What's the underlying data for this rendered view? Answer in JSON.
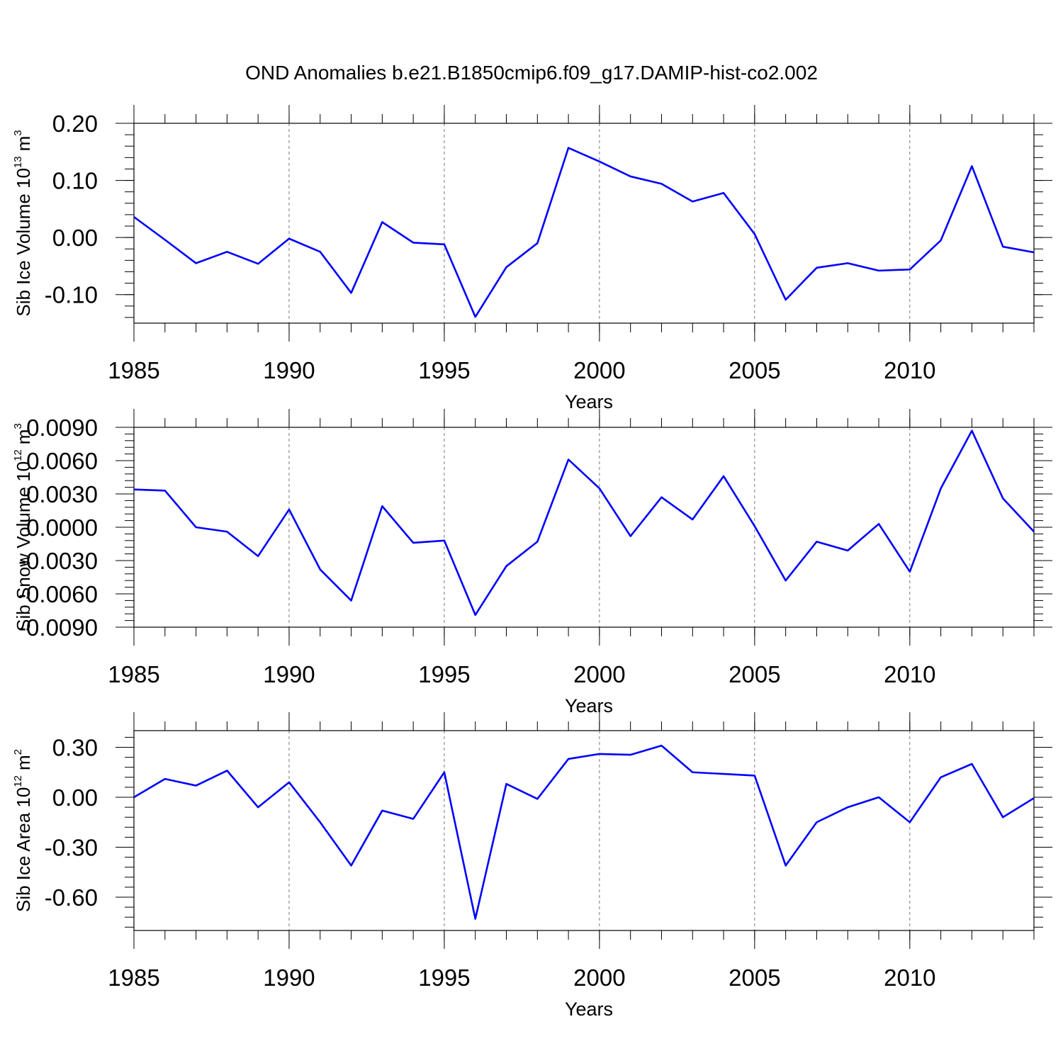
{
  "title": "OND Anomalies b.e21.B1850cmip6.f09_g17.DAMIP-hist-co2.002",
  "chart_data": [
    {
      "type": "line",
      "ylabel": [
        "Sib Ice Volume 10",
        "13",
        "m",
        "3"
      ],
      "xlabel": "Years",
      "x": [
        1985,
        1986,
        1987,
        1988,
        1989,
        1990,
        1991,
        1992,
        1993,
        1994,
        1995,
        1996,
        1997,
        1998,
        1999,
        2000,
        2001,
        2002,
        2003,
        2004,
        2005,
        2006,
        2007,
        2008,
        2009,
        2010,
        2011,
        2012,
        2013,
        2014
      ],
      "values": [
        0.036,
        -0.004,
        -0.045,
        -0.025,
        -0.046,
        -0.002,
        -0.025,
        -0.097,
        0.027,
        -0.009,
        -0.012,
        -0.139,
        -0.052,
        -0.01,
        0.157,
        0.133,
        0.107,
        0.094,
        0.063,
        0.078,
        0.006,
        -0.109,
        -0.053,
        -0.045,
        -0.058,
        -0.056,
        -0.005,
        0.125,
        -0.016,
        -0.026
      ],
      "color": "#0000ff",
      "xlim": [
        1985,
        2014
      ],
      "ylim": [
        -0.15,
        0.2
      ],
      "xticks": [
        1985,
        1990,
        1995,
        2000,
        2005,
        2010
      ],
      "yticks": [
        {
          "value": -0.1,
          "label": "-0.10"
        },
        {
          "value": 0,
          "label": "0.00"
        },
        {
          "value": 0.1,
          "label": "0.10"
        },
        {
          "value": 0.2,
          "label": "0.20"
        }
      ],
      "grid": "x"
    },
    {
      "type": "line",
      "ylabel": [
        "Sib Snow Volume 10",
        "12",
        "m",
        "3"
      ],
      "xlabel": "Years",
      "x": [
        1985,
        1986,
        1987,
        1988,
        1989,
        1990,
        1991,
        1992,
        1993,
        1994,
        1995,
        1996,
        1997,
        1998,
        1999,
        2000,
        2001,
        2002,
        2003,
        2004,
        2005,
        2006,
        2007,
        2008,
        2009,
        2010,
        2011,
        2012,
        2013,
        2014
      ],
      "values": [
        0.0034,
        0.0033,
        0.0,
        -0.0004,
        -0.0026,
        0.0016,
        -0.0038,
        -0.0066,
        0.0019,
        -0.0014,
        -0.0012,
        -0.0079,
        -0.0035,
        -0.0013,
        0.0061,
        0.0035,
        -0.0008,
        0.0027,
        0.0007,
        0.0046,
        0.0001,
        -0.0048,
        -0.0013,
        -0.0021,
        0.0003,
        -0.004,
        0.0035,
        0.0087,
        0.0026,
        -0.0004
      ],
      "color": "#0000ff",
      "xlim": [
        1985,
        2014
      ],
      "ylim": [
        -0.009,
        0.009
      ],
      "xticks": [
        1985,
        1990,
        1995,
        2000,
        2005,
        2010
      ],
      "yticks": [
        {
          "value": -0.009,
          "label": "-0.0090"
        },
        {
          "value": -0.006,
          "label": "-0.0060"
        },
        {
          "value": -0.003,
          "label": "-0.0030"
        },
        {
          "value": 0,
          "label": "0.0000"
        },
        {
          "value": 0.003,
          "label": "0.0030"
        },
        {
          "value": 0.006,
          "label": "0.0060"
        },
        {
          "value": 0.009,
          "label": "0.0090"
        }
      ],
      "grid": "x"
    },
    {
      "type": "line",
      "ylabel": [
        "Sib Ice Area 10",
        "12",
        "m",
        "2"
      ],
      "xlabel": "Years",
      "x": [
        1985,
        1986,
        1987,
        1988,
        1989,
        1990,
        1991,
        1992,
        1993,
        1994,
        1995,
        1996,
        1997,
        1998,
        1999,
        2000,
        2001,
        2002,
        2003,
        2004,
        2005,
        2006,
        2007,
        2008,
        2009,
        2010,
        2011,
        2012,
        2013,
        2014
      ],
      "values": [
        0.0,
        0.11,
        0.07,
        0.16,
        -0.06,
        0.09,
        -0.15,
        -0.41,
        -0.08,
        -0.13,
        0.15,
        -0.73,
        0.08,
        -0.01,
        0.23,
        0.26,
        0.255,
        0.31,
        0.15,
        0.14,
        0.13,
        -0.41,
        -0.15,
        -0.06,
        0.0,
        -0.15,
        0.12,
        0.2,
        -0.12,
        -0.005
      ],
      "color": "#0000ff",
      "xlim": [
        1985,
        2014
      ],
      "ylim": [
        -0.8,
        0.4
      ],
      "xticks": [
        1985,
        1990,
        1995,
        2000,
        2005,
        2010
      ],
      "yticks": [
        {
          "value": -0.6,
          "label": "-0.60"
        },
        {
          "value": -0.3,
          "label": "-0.30"
        },
        {
          "value": 0,
          "label": "0.00"
        },
        {
          "value": 0.3,
          "label": "0.30"
        }
      ],
      "grid": "x"
    }
  ]
}
